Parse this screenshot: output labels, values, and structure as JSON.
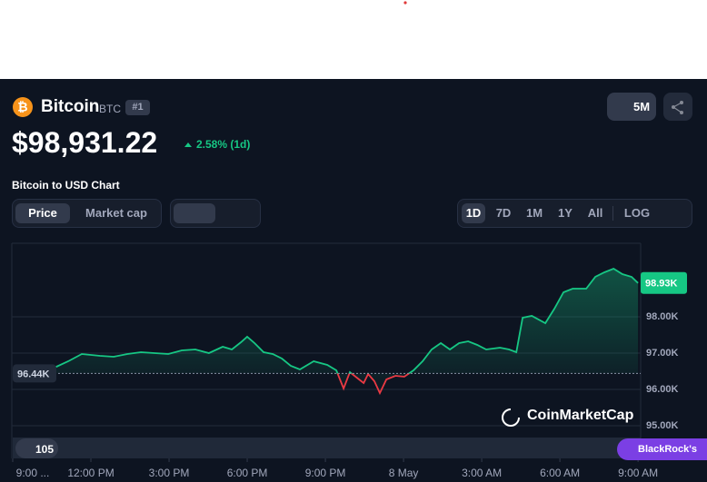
{
  "header": {
    "name": "Bitcoin",
    "symbol": "BTC",
    "rank": "#1",
    "watchlist": "5M",
    "price": "$98,931.22",
    "change": "2.58% (1d)",
    "chart_title": "Bitcoin to USD Chart"
  },
  "tabs": {
    "metric": [
      "Price",
      "Market cap"
    ],
    "ranges": [
      "1D",
      "7D",
      "1M",
      "1Y",
      "All",
      "LOG"
    ]
  },
  "overlays": {
    "watermark": "CoinMarketCap",
    "events": "105",
    "news": "BlackRock's"
  },
  "chart_data": {
    "type": "line",
    "x": [
      1.6,
      2.13,
      2.65,
      3.35,
      3.87,
      4.4,
      4.92,
      5.44,
      5.97,
      6.49,
      7.01,
      7.53,
      8.06,
      8.41,
      8.76,
      9.0,
      9.28,
      9.63,
      9.98,
      10.33,
      10.67,
      11.02,
      11.55,
      12.07,
      12.42,
      12.7,
      12.94,
      13.29,
      13.47,
      13.64,
      13.88,
      14.09,
      14.34,
      14.69,
      15.03,
      15.38,
      15.73,
      16.08,
      16.43,
      16.78,
      17.13,
      17.48,
      17.83,
      18.17,
      18.7,
      19.05,
      19.33,
      19.57,
      19.92,
      20.44,
      20.79,
      21.14,
      21.49,
      22.01,
      22.36,
      22.71,
      23.06,
      23.4,
      23.75,
      24.0
    ],
    "series": [
      {
        "name": "Price",
        "color": "#16c784",
        "down_color": "#ea3943",
        "values": [
          96600,
          96775,
          96975,
          96925,
          96900,
          96975,
          97025,
          97000,
          96975,
          97075,
          97100,
          97000,
          97175,
          97100,
          97300,
          97450,
          97275,
          97025,
          96975,
          96850,
          96650,
          96550,
          96775,
          96675,
          96525,
          96025,
          96475,
          96275,
          96175,
          96425,
          96225,
          95900,
          96275,
          96375,
          96350,
          96525,
          96775,
          97100,
          97275,
          97100,
          97275,
          97325,
          97225,
          97100,
          97150,
          97100,
          97025,
          97975,
          98025,
          97825,
          98225,
          98675,
          98775,
          98775,
          99100,
          99225,
          99325,
          99175,
          99100,
          98931
        ]
      }
    ],
    "xlim": [
      0,
      24.1
    ],
    "ylim": [
      94100,
      100025
    ],
    "xticks": [
      {
        "value": 0,
        "label": "9:00 ..."
      },
      {
        "value": 3,
        "label": "12:00 PM"
      },
      {
        "value": 6,
        "label": "3:00 PM"
      },
      {
        "value": 9,
        "label": "6:00 PM"
      },
      {
        "value": 12,
        "label": "9:00 PM"
      },
      {
        "value": 15,
        "label": "8 May"
      },
      {
        "value": 18,
        "label": "3:00 AM"
      },
      {
        "value": 21,
        "label": "6:00 AM"
      },
      {
        "value": 24,
        "label": "9:00 AM"
      }
    ],
    "yticks": [
      {
        "value": 95000,
        "label": "95.00K"
      },
      {
        "value": 96000,
        "label": "96.00K"
      },
      {
        "value": 97000,
        "label": "97.00K"
      },
      {
        "value": 98000,
        "label": "98.00K"
      }
    ],
    "reference_line": {
      "value": 96440,
      "label": "96.44K"
    },
    "current_price": {
      "value": 98931,
      "label": "98.93K"
    },
    "grid": true
  }
}
